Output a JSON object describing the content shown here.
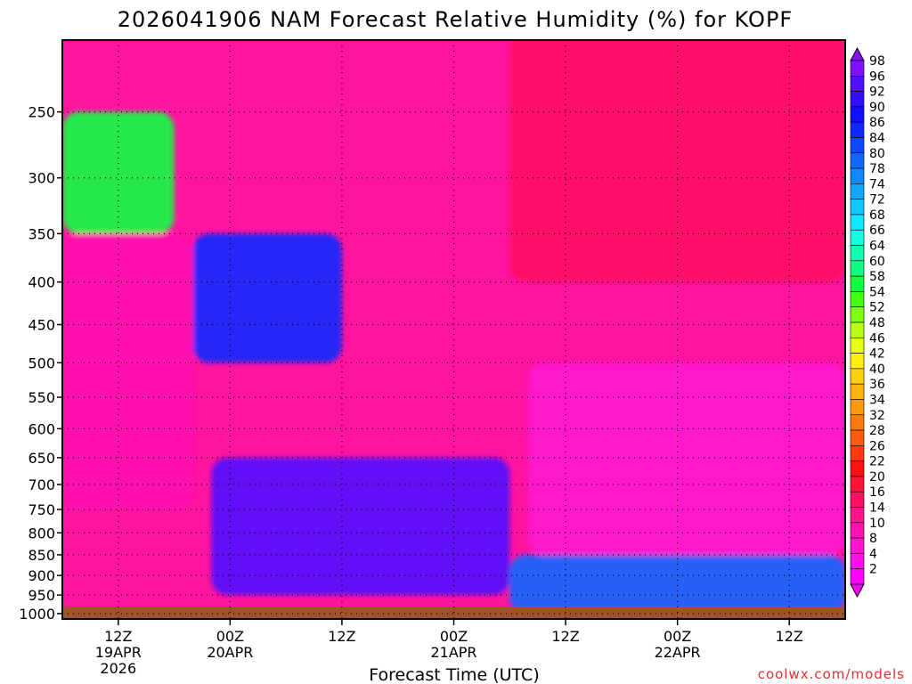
{
  "chart_data": {
    "type": "heatmap",
    "title": "2026041906 NAM Forecast Relative Humidity (%) for KOPF",
    "xlabel": "Forecast Time (UTC)",
    "ylabel": "",
    "y_axis": {
      "label": "",
      "scale": "log-pressure",
      "inverted": true,
      "ticks": [
        250,
        300,
        350,
        400,
        450,
        500,
        550,
        600,
        650,
        700,
        750,
        800,
        850,
        900,
        950,
        1000
      ]
    },
    "x_axis": {
      "ticks": [
        {
          "hour": 6,
          "lines": [
            "12Z",
            "19APR",
            "2026"
          ]
        },
        {
          "hour": 18,
          "lines": [
            "00Z",
            "20APR"
          ]
        },
        {
          "hour": 30,
          "lines": [
            "12Z"
          ]
        },
        {
          "hour": 42,
          "lines": [
            "00Z",
            "21APR"
          ]
        },
        {
          "hour": 54,
          "lines": [
            "12Z"
          ]
        },
        {
          "hour": 66,
          "lines": [
            "00Z",
            "22APR"
          ]
        },
        {
          "hour": 78,
          "lines": [
            "12Z"
          ]
        }
      ],
      "range_hours": [
        0,
        84
      ]
    },
    "grid": true,
    "colorbar": {
      "levels": [
        2,
        4,
        8,
        10,
        14,
        16,
        20,
        22,
        26,
        28,
        32,
        34,
        36,
        40,
        42,
        46,
        48,
        52,
        54,
        58,
        60,
        64,
        66,
        68,
        72,
        74,
        78,
        80,
        84,
        86,
        90,
        92,
        96,
        98
      ],
      "colors": [
        "#ff00ff",
        "#ff10e8",
        "#ff14d0",
        "#ff10b0",
        "#ff148c",
        "#ff1060",
        "#ff1438",
        "#ff1010",
        "#ff3a10",
        "#ff5a10",
        "#ff7a10",
        "#ff9a10",
        "#ffb410",
        "#ffd010",
        "#ffee10",
        "#e6ff10",
        "#b8ff10",
        "#80ff10",
        "#40ff10",
        "#10ff40",
        "#10ff80",
        "#10ffb0",
        "#10ffe0",
        "#10e8ff",
        "#10c8ff",
        "#10a8ff",
        "#1088ff",
        "#1068ff",
        "#1048ff",
        "#1028ff",
        "#1010ff",
        "#3010ff",
        "#5010ff",
        "#8010ff"
      ]
    },
    "fields": {
      "units": "percent",
      "description_regions": [
        {
          "level_top": 250,
          "level_bottom": 350,
          "hours": [
            0,
            12
          ],
          "rh": 55
        },
        {
          "level_top": 350,
          "level_bottom": 500,
          "hours": [
            14,
            30
          ],
          "rh": 85
        },
        {
          "level_top": 650,
          "level_bottom": 950,
          "hours": [
            16,
            48
          ],
          "rh": 95
        },
        {
          "level_top": 350,
          "level_bottom": 750,
          "hours": [
            0,
            14
          ],
          "rh": 10
        },
        {
          "level_top": 500,
          "level_bottom": 850,
          "hours": [
            50,
            84
          ],
          "rh": 6
        },
        {
          "level_top": 200,
          "level_bottom": 400,
          "hours": [
            48,
            84
          ],
          "rh": 15
        },
        {
          "level_top": 850,
          "level_bottom": 1000,
          "hours": [
            48,
            84
          ],
          "rh": 80
        }
      ]
    },
    "ground_color": "#a0522d"
  },
  "credit": "coolwx.com/models"
}
